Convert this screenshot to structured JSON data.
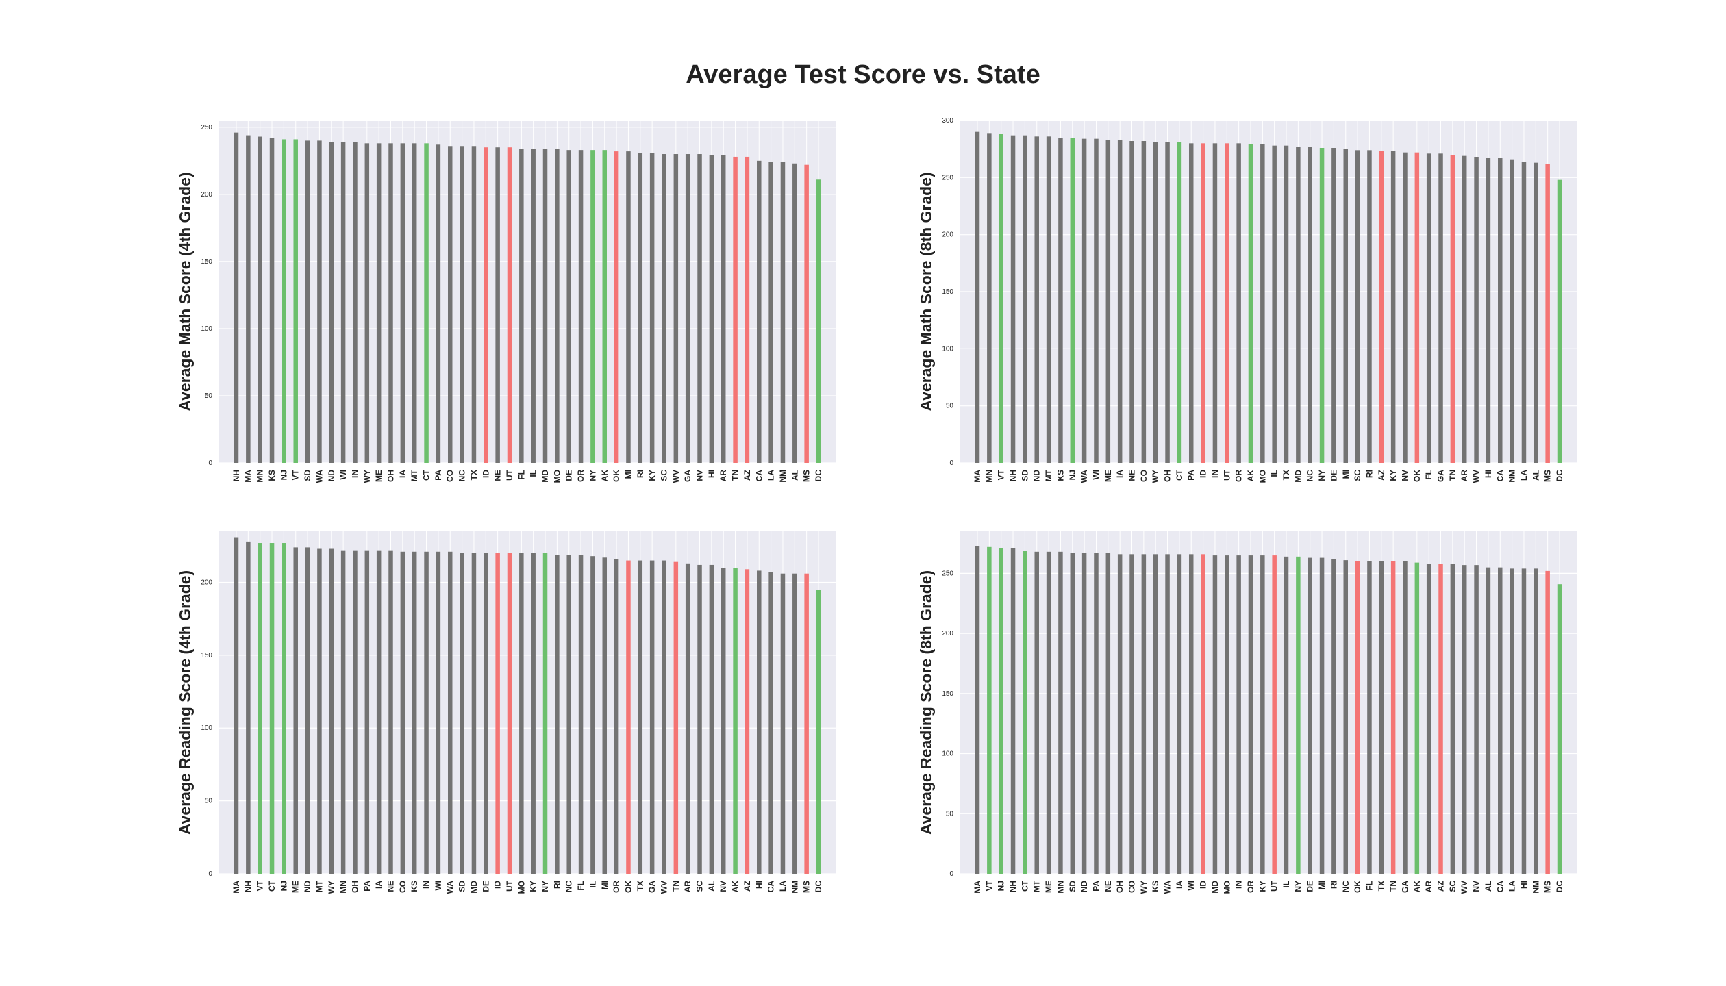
{
  "title": "Average Test Score vs. State",
  "colors": {
    "neutral": "#737373",
    "high": "#6cbf6c",
    "low": "#f47474",
    "panel_bg": "#eaeaf2",
    "grid": "#ffffff"
  },
  "chart_data": [
    {
      "type": "bar",
      "ylabel": "Average Math Score (4th Grade)",
      "ylim": [
        0,
        255
      ],
      "yticks": [
        0,
        50,
        100,
        150,
        200,
        250
      ],
      "grid": true,
      "categories": [
        "NH",
        "MA",
        "MN",
        "KS",
        "NJ",
        "VT",
        "SD",
        "WA",
        "ND",
        "WI",
        "IN",
        "WY",
        "ME",
        "OH",
        "IA",
        "MT",
        "CT",
        "PA",
        "CO",
        "NC",
        "TX",
        "ID",
        "NE",
        "UT",
        "FL",
        "IL",
        "MD",
        "MO",
        "DE",
        "OR",
        "NY",
        "AK",
        "OK",
        "MI",
        "RI",
        "KY",
        "SC",
        "WV",
        "GA",
        "NV",
        "HI",
        "AR",
        "TN",
        "AZ",
        "CA",
        "LA",
        "NM",
        "AL",
        "MS",
        "DC"
      ],
      "values": [
        246,
        244,
        243,
        242,
        241,
        241,
        240,
        240,
        239,
        239,
        239,
        238,
        238,
        238,
        238,
        238,
        238,
        237,
        236,
        236,
        236,
        235,
        235,
        235,
        234,
        234,
        234,
        234,
        233,
        233,
        233,
        233,
        232,
        232,
        231,
        231,
        230,
        230,
        230,
        230,
        229,
        229,
        228,
        228,
        225,
        224,
        224,
        223,
        222,
        211
      ],
      "highlight": {
        "high": [
          "NJ",
          "VT",
          "CT",
          "NY",
          "AK",
          "DC"
        ],
        "low": [
          "ID",
          "UT",
          "OK",
          "TN",
          "AZ",
          "MS"
        ]
      }
    },
    {
      "type": "bar",
      "ylabel": "Average Math Score (8th Grade)",
      "ylim": [
        0,
        300
      ],
      "yticks": [
        0,
        50,
        100,
        150,
        200,
        250,
        300
      ],
      "grid": true,
      "categories": [
        "MA",
        "MN",
        "VT",
        "NH",
        "SD",
        "ND",
        "MT",
        "KS",
        "NJ",
        "WA",
        "WI",
        "ME",
        "IA",
        "NE",
        "CO",
        "WY",
        "OH",
        "CT",
        "PA",
        "ID",
        "IN",
        "UT",
        "OR",
        "AK",
        "MO",
        "IL",
        "TX",
        "MD",
        "NC",
        "NY",
        "DE",
        "MI",
        "SC",
        "RI",
        "AZ",
        "KY",
        "NV",
        "OK",
        "FL",
        "GA",
        "TN",
        "AR",
        "WV",
        "HI",
        "CA",
        "NM",
        "LA",
        "AL",
        "MS",
        "DC"
      ],
      "values": [
        290,
        289,
        288,
        287,
        287,
        286,
        286,
        285,
        285,
        284,
        284,
        283,
        283,
        282,
        282,
        281,
        281,
        281,
        280,
        280,
        280,
        280,
        280,
        279,
        279,
        278,
        278,
        277,
        277,
        276,
        276,
        275,
        274,
        274,
        273,
        273,
        272,
        272,
        271,
        271,
        270,
        269,
        268,
        267,
        267,
        266,
        264,
        263,
        262,
        248
      ],
      "highlight": {
        "high": [
          "VT",
          "NJ",
          "CT",
          "AK",
          "NY",
          "DC"
        ],
        "low": [
          "ID",
          "UT",
          "AZ",
          "OK",
          "TN",
          "MS"
        ]
      }
    },
    {
      "type": "bar",
      "ylabel": "Average Reading Score (4th Grade)",
      "ylim": [
        0,
        235
      ],
      "yticks": [
        0,
        50,
        100,
        150,
        200
      ],
      "grid": true,
      "categories": [
        "MA",
        "NH",
        "VT",
        "CT",
        "NJ",
        "ME",
        "ND",
        "MT",
        "WY",
        "MN",
        "OH",
        "PA",
        "IA",
        "NE",
        "CO",
        "KS",
        "IN",
        "WI",
        "WA",
        "SD",
        "MD",
        "DE",
        "ID",
        "UT",
        "MO",
        "KY",
        "NY",
        "RI",
        "NC",
        "FL",
        "IL",
        "MI",
        "OR",
        "OK",
        "TX",
        "GA",
        "WV",
        "TN",
        "AR",
        "SC",
        "AL",
        "NV",
        "AK",
        "AZ",
        "HI",
        "CA",
        "LA",
        "NM",
        "MS",
        "DC"
      ],
      "values": [
        231,
        228,
        227,
        227,
        227,
        224,
        224,
        223,
        223,
        222,
        222,
        222,
        222,
        222,
        221,
        221,
        221,
        221,
        221,
        220,
        220,
        220,
        220,
        220,
        220,
        220,
        220,
        219,
        219,
        219,
        218,
        217,
        216,
        215,
        215,
        215,
        215,
        214,
        213,
        212,
        212,
        210,
        210,
        209,
        208,
        207,
        206,
        206,
        206,
        195
      ],
      "highlight": {
        "high": [
          "VT",
          "CT",
          "NJ",
          "NY",
          "AK",
          "DC"
        ],
        "low": [
          "ID",
          "UT",
          "OK",
          "TN",
          "AZ",
          "MS"
        ]
      }
    },
    {
      "type": "bar",
      "ylabel": "Average Reading Score (8th Grade)",
      "ylim": [
        0,
        285
      ],
      "yticks": [
        0,
        50,
        100,
        150,
        200,
        250
      ],
      "grid": true,
      "categories": [
        "MA",
        "VT",
        "NJ",
        "NH",
        "CT",
        "MT",
        "ME",
        "MN",
        "SD",
        "ND",
        "PA",
        "NE",
        "OH",
        "CO",
        "WY",
        "KS",
        "WA",
        "IA",
        "WI",
        "ID",
        "MD",
        "MO",
        "IN",
        "OR",
        "KY",
        "UT",
        "IL",
        "NY",
        "DE",
        "MI",
        "RI",
        "NC",
        "OK",
        "FL",
        "TX",
        "TN",
        "GA",
        "AK",
        "AR",
        "AZ",
        "SC",
        "WV",
        "NV",
        "AL",
        "CA",
        "LA",
        "HI",
        "NM",
        "MS",
        "DC"
      ],
      "values": [
        273,
        272,
        271,
        271,
        269,
        268,
        268,
        268,
        267,
        267,
        267,
        267,
        266,
        266,
        266,
        266,
        266,
        266,
        266,
        266,
        265,
        265,
        265,
        265,
        265,
        265,
        264,
        264,
        263,
        263,
        262,
        261,
        260,
        260,
        260,
        260,
        260,
        259,
        258,
        258,
        258,
        257,
        257,
        255,
        255,
        254,
        254,
        254,
        252,
        241
      ],
      "highlight": {
        "high": [
          "VT",
          "NJ",
          "CT",
          "NY",
          "AK",
          "DC"
        ],
        "low": [
          "ID",
          "UT",
          "OK",
          "TN",
          "AZ",
          "MS"
        ]
      }
    }
  ]
}
